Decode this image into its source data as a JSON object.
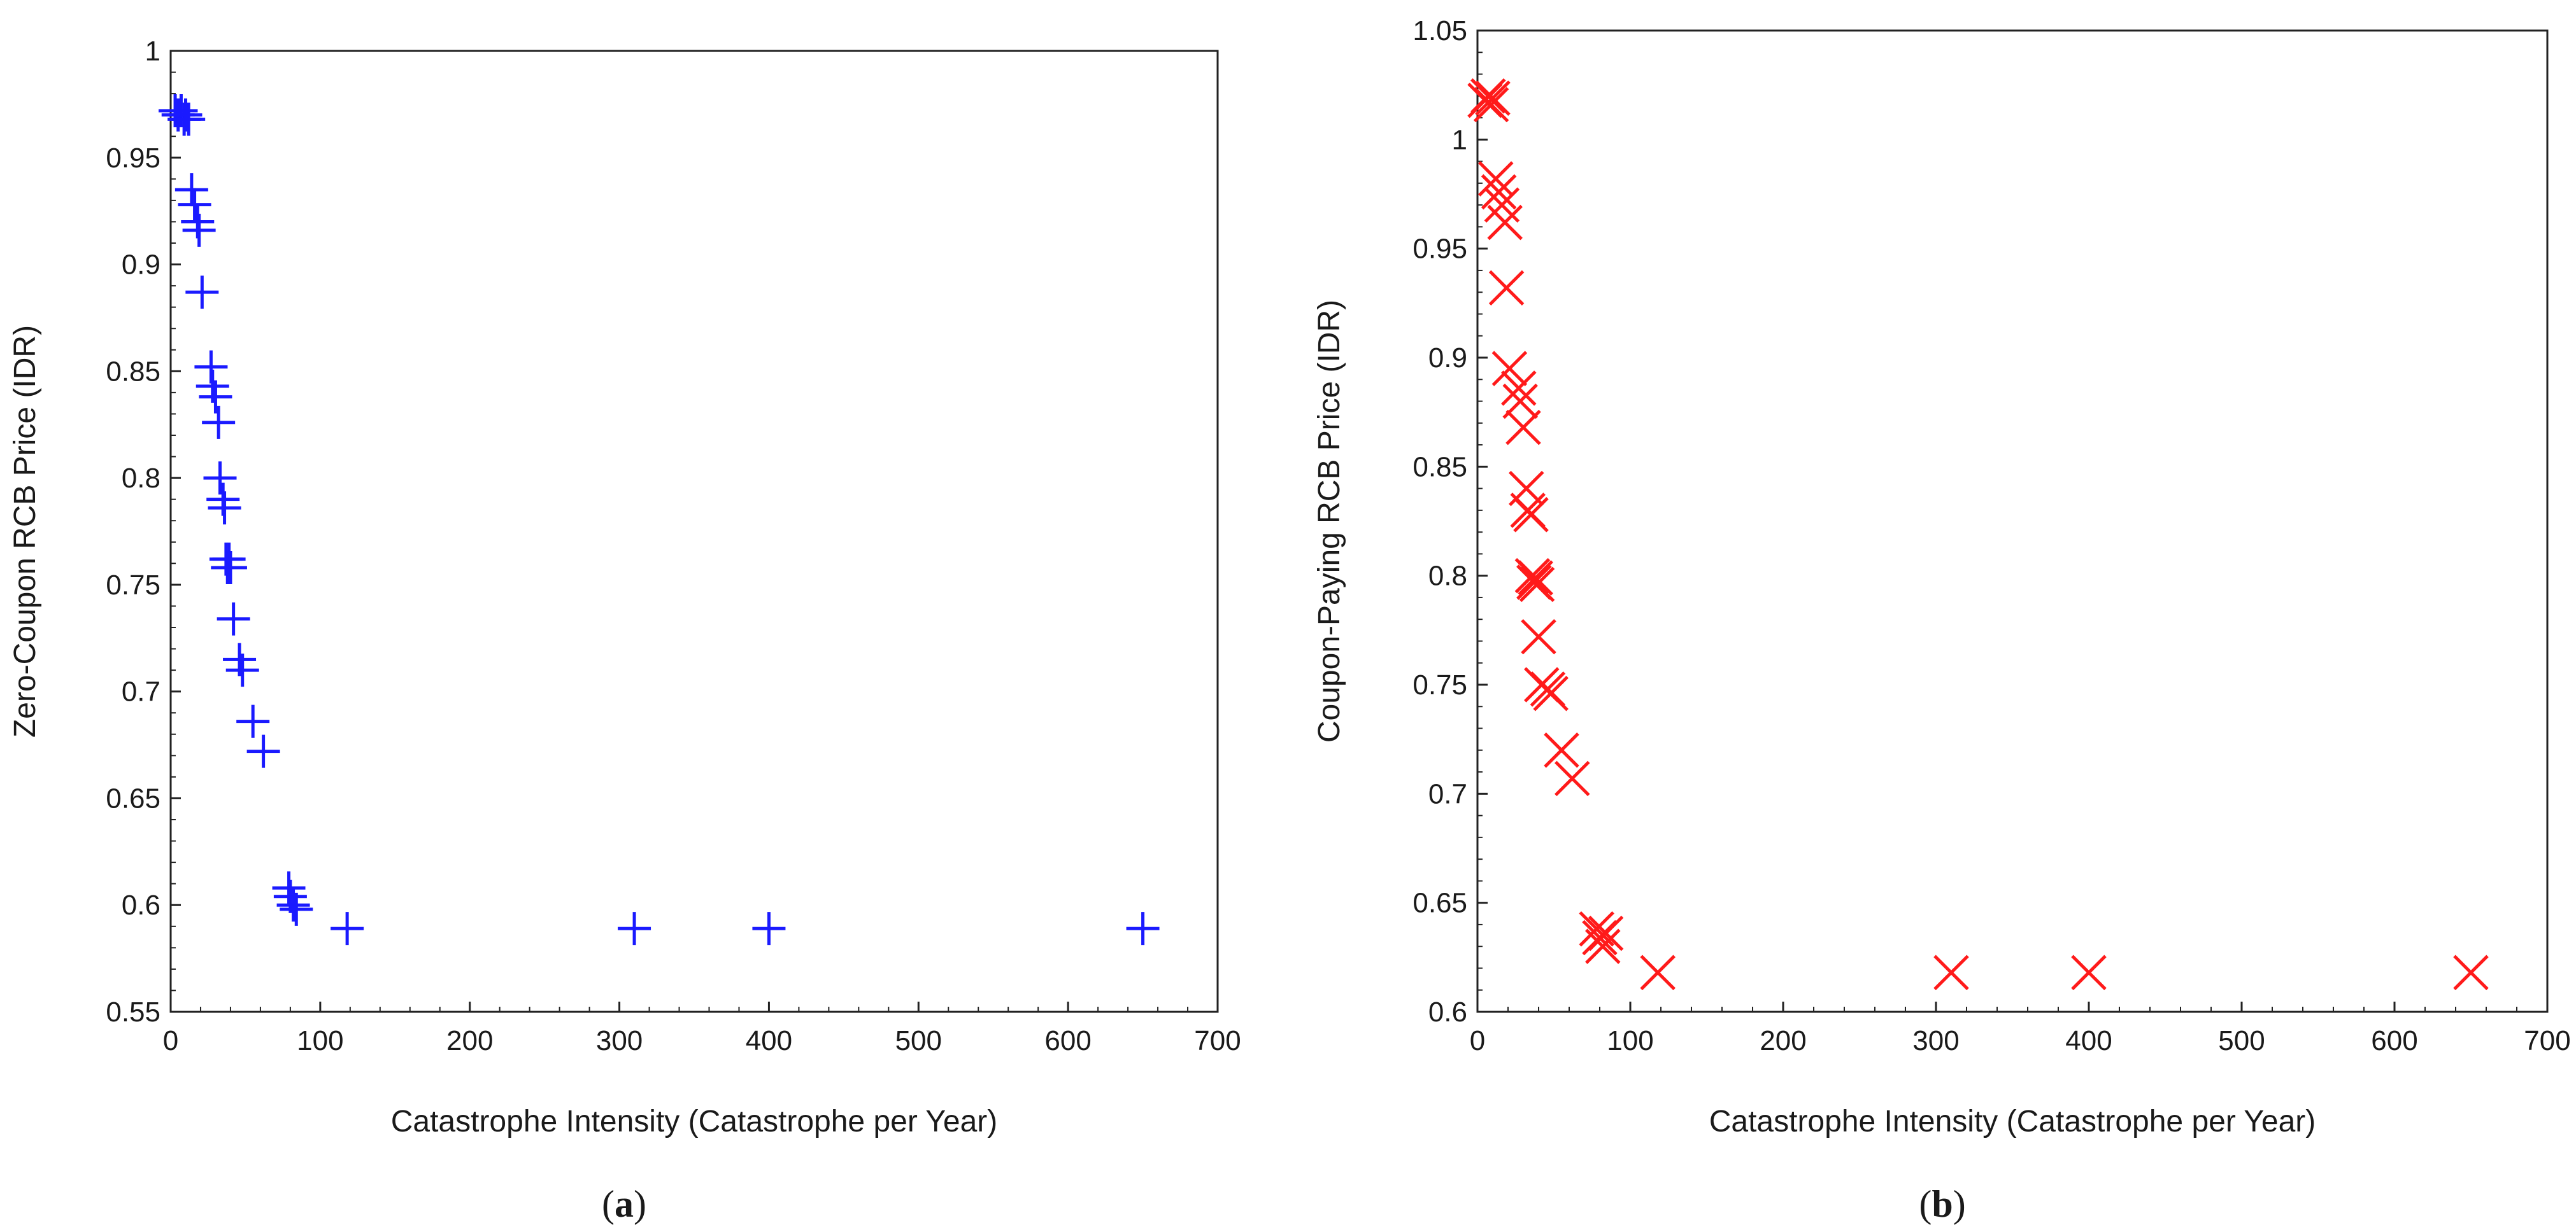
{
  "chart_data": [
    {
      "type": "scatter",
      "panel": "a",
      "caption_open": "(",
      "caption_letter": "a",
      "caption_close": ")",
      "xlabel": "Catastrophe Intensity (Catastrophe per Year)",
      "ylabel": "Zero-Coupon RCB Price (IDR)",
      "xlim": [
        0,
        700
      ],
      "ylim": [
        0.55,
        1.0
      ],
      "xticks": [
        0,
        100,
        200,
        300,
        400,
        500,
        600,
        700
      ],
      "xtick_labels": [
        "0",
        "100",
        "200",
        "300",
        "400",
        "500",
        "600",
        "700"
      ],
      "yticks": [
        0.55,
        0.6,
        0.65,
        0.7,
        0.75,
        0.8,
        0.85,
        0.9,
        0.95,
        1.0
      ],
      "ytick_labels": [
        "0.55",
        "0.6",
        "0.65",
        "0.7",
        "0.75",
        "0.8",
        "0.85",
        "0.9",
        "0.95",
        "1"
      ],
      "marker": "plus",
      "color": "#1a1aff",
      "grid": false,
      "series": [
        {
          "name": "Zero-Coupon RCB",
          "x": [
            3,
            5,
            7,
            9,
            10,
            12,
            14,
            16,
            18,
            19,
            21,
            27,
            28,
            30,
            32,
            33,
            35,
            36,
            37,
            38,
            39,
            40,
            42,
            46,
            48,
            55,
            62,
            79,
            80,
            82,
            84,
            118,
            310,
            400,
            650
          ],
          "y": [
            0.972,
            0.97,
            0.972,
            0.968,
            0.97,
            0.968,
            0.935,
            0.928,
            0.92,
            0.916,
            0.887,
            0.852,
            0.843,
            0.838,
            0.826,
            0.8,
            0.79,
            0.786,
            0.762,
            0.758,
            0.762,
            0.758,
            0.734,
            0.715,
            0.71,
            0.686,
            0.672,
            0.608,
            0.604,
            0.6,
            0.598,
            0.589,
            0.589,
            0.589,
            0.589
          ]
        }
      ]
    },
    {
      "type": "scatter",
      "panel": "b",
      "caption_open": "(",
      "caption_letter": "b",
      "caption_close": ")",
      "xlabel": "Catastrophe Intensity (Catastrophe per Year)",
      "ylabel": "Coupon-Paying RCB Price (IDR)",
      "xlim": [
        0,
        700
      ],
      "ylim": [
        0.6,
        1.05
      ],
      "xticks": [
        0,
        100,
        200,
        300,
        400,
        500,
        600,
        700
      ],
      "xtick_labels": [
        "0",
        "100",
        "200",
        "300",
        "400",
        "500",
        "600",
        "700"
      ],
      "yticks": [
        0.6,
        0.65,
        0.7,
        0.75,
        0.8,
        0.85,
        0.9,
        0.95,
        1.0,
        1.05
      ],
      "ytick_labels": [
        "0.6",
        "0.65",
        "0.7",
        "0.75",
        "0.8",
        "0.85",
        "0.9",
        "0.95",
        "1",
        "1.05"
      ],
      "marker": "x",
      "color": "#ff1a1a",
      "grid": false,
      "series": [
        {
          "name": "Coupon-Paying RCB",
          "x": [
            5,
            7,
            9,
            10,
            12,
            14,
            16,
            18,
            19,
            21,
            27,
            28,
            30,
            32,
            33,
            35,
            36,
            37,
            38,
            39,
            40,
            42,
            46,
            48,
            55,
            62,
            78,
            80,
            82,
            84,
            118,
            310,
            400,
            650
          ],
          "y": [
            1.018,
            1.02,
            1.016,
            1.019,
            0.982,
            0.976,
            0.97,
            0.962,
            0.932,
            0.895,
            0.886,
            0.88,
            0.868,
            0.84,
            0.83,
            0.828,
            0.8,
            0.797,
            0.799,
            0.796,
            0.772,
            0.75,
            0.748,
            0.746,
            0.72,
            0.707,
            0.638,
            0.634,
            0.63,
            0.636,
            0.618,
            0.618,
            0.618,
            0.618
          ]
        }
      ]
    }
  ]
}
